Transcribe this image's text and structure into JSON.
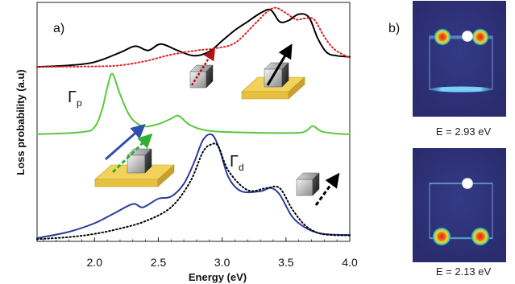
{
  "panel_a": {
    "label": "a)",
    "y_label": "Loss probability (a.u)",
    "x_label": "Energy (eV)",
    "annotations": {
      "gamma_p": {
        "symbol": "Γ",
        "subscript": "p"
      },
      "gamma_d": {
        "symbol": "Γ",
        "subscript": "d"
      }
    },
    "colors": {
      "top_solid": "#000000",
      "top_dotted": "#e02020",
      "middle": "#5ac83c",
      "bottom_solid": "#2a3c9a",
      "bottom_dotted": "#000000",
      "substrate": "#f2d25a",
      "arrow_red": "#b01818",
      "arrow_blue": "#3050b0",
      "arrow_green": "#30b030"
    }
  },
  "panel_b": {
    "label": "b)",
    "maps": [
      {
        "caption": "E = 2.93 eV",
        "hotspots": "top"
      },
      {
        "caption": "E = 2.13 eV",
        "hotspots": "bottom"
      }
    ],
    "colors": {
      "map_bg": "#30327a",
      "square": "#8aa4e0",
      "hot": "#e8e020",
      "hot_core": "#e02818"
    }
  },
  "chart_data": {
    "type": "line",
    "title": "",
    "xlabel": "Energy (eV)",
    "ylabel": "Loss probability (a.u)",
    "xlim": [
      1.55,
      4.0
    ],
    "ylim": [
      0,
      11.2
    ],
    "xticks": [
      2.0,
      2.5,
      3.0,
      3.5,
      4.0
    ],
    "xtick_labels": [
      "2.0",
      "2.5",
      "3.0",
      "3.5",
      "4.0"
    ],
    "grid": false,
    "series": [
      {
        "style": "solid",
        "color": "#000000",
        "x": [
          1.55,
          1.8,
          2.0,
          2.2,
          2.32,
          2.42,
          2.52,
          2.65,
          2.78,
          2.9,
          3.0,
          3.1,
          3.2,
          3.3,
          3.38,
          3.45,
          3.52,
          3.6,
          3.68,
          3.75,
          3.82,
          3.9,
          4.0
        ],
        "y": [
          8.18,
          8.25,
          8.4,
          8.85,
          9.15,
          8.95,
          9.25,
          8.95,
          8.7,
          8.9,
          9.4,
          9.9,
          10.3,
          10.7,
          10.85,
          10.3,
          10.35,
          10.65,
          10.5,
          9.5,
          8.85,
          8.7,
          8.65
        ]
      },
      {
        "style": "dotted",
        "color": "#e02020",
        "x": [
          1.55,
          2.0,
          2.2,
          2.4,
          2.6,
          2.8,
          2.95,
          3.1,
          3.25,
          3.35,
          3.42,
          3.5,
          3.58,
          3.65,
          3.72,
          3.8,
          3.88,
          4.0
        ],
        "y": [
          8.18,
          8.2,
          8.25,
          8.45,
          8.75,
          8.95,
          9.05,
          9.3,
          10.15,
          10.75,
          10.95,
          10.7,
          10.4,
          10.45,
          10.4,
          9.6,
          9.0,
          8.6
        ]
      },
      {
        "style": "solid",
        "color": "#5ac83c",
        "x": [
          1.55,
          1.9,
          2.0,
          2.06,
          2.1,
          2.14,
          2.2,
          2.28,
          2.38,
          2.5,
          2.6,
          2.66,
          2.75,
          2.9,
          3.2,
          3.55,
          3.65,
          3.71,
          3.78,
          3.9,
          4.0
        ],
        "y": [
          5.02,
          5.12,
          5.35,
          6.2,
          7.2,
          7.85,
          6.9,
          5.85,
          5.4,
          5.5,
          5.75,
          5.88,
          5.45,
          5.18,
          5.1,
          5.08,
          5.15,
          5.4,
          5.15,
          5.05,
          5.02
        ]
      },
      {
        "style": "solid",
        "color": "#2a3c9a",
        "x": [
          1.55,
          1.8,
          2.0,
          2.15,
          2.3,
          2.38,
          2.5,
          2.6,
          2.7,
          2.78,
          2.85,
          2.92,
          2.98,
          3.05,
          3.15,
          3.3,
          3.38,
          3.45,
          3.55,
          3.65,
          3.75,
          3.85,
          4.0
        ],
        "y": [
          0.15,
          0.45,
          0.85,
          1.3,
          1.75,
          1.6,
          2.0,
          2.1,
          2.7,
          3.7,
          4.75,
          5.0,
          4.3,
          3.0,
          2.35,
          2.35,
          2.5,
          2.2,
          1.15,
          0.65,
          0.4,
          0.32,
          0.3
        ]
      },
      {
        "style": "dotted",
        "color": "#000000",
        "x": [
          1.55,
          1.8,
          2.0,
          2.2,
          2.4,
          2.6,
          2.75,
          2.85,
          2.92,
          2.97,
          3.05,
          3.2,
          3.35,
          3.45,
          3.55,
          3.65,
          3.75,
          3.85,
          4.0
        ],
        "y": [
          0.1,
          0.2,
          0.35,
          0.6,
          0.95,
          1.6,
          2.8,
          4.2,
          4.55,
          4.45,
          3.3,
          2.4,
          2.5,
          2.5,
          1.5,
          0.75,
          0.4,
          0.3,
          0.28
        ]
      }
    ]
  }
}
